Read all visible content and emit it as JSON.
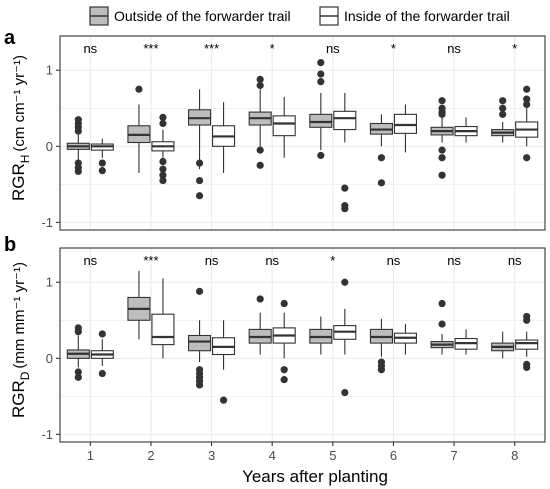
{
  "legend": {
    "outside_label": "Outside of the forwarder trail",
    "inside_label": "Inside of the forwarder trail"
  },
  "colors": {
    "outside_fill": "#bdbdbd",
    "inside_fill": "#ffffff",
    "stroke": "#333333",
    "grid": "#ebebeb",
    "panel_border": "#333333"
  },
  "chart_data": [
    {
      "type": "boxplot",
      "panel": "a",
      "ylabel_main": "RGR",
      "ylabel_sub": "H",
      "ylabel_unit": "(cm cm⁻¹ yr⁻¹)",
      "ylim": [
        -1.1,
        1.45
      ],
      "yticks": [
        -1,
        0,
        1
      ],
      "categories": [
        "1",
        "2",
        "3",
        "4",
        "5",
        "6",
        "7",
        "8"
      ],
      "significance": [
        "ns",
        "***",
        "***",
        "*",
        "ns",
        "*",
        "ns",
        "*"
      ],
      "series": [
        {
          "name": "Outside of the forwarder trail",
          "boxes": [
            {
              "min": -0.18,
              "q1": -0.04,
              "median": 0.0,
              "q3": 0.04,
              "max": 0.17,
              "outliers": [
                0.35,
                0.3,
                0.25,
                0.2,
                -0.22,
                -0.28,
                -0.33
              ]
            },
            {
              "min": -0.35,
              "q1": 0.05,
              "median": 0.15,
              "q3": 0.27,
              "max": 0.55,
              "outliers": [
                0.75
              ]
            },
            {
              "min": -0.3,
              "q1": 0.28,
              "median": 0.37,
              "q3": 0.48,
              "max": 0.75,
              "outliers": [
                -0.22,
                -0.45,
                -0.65
              ]
            },
            {
              "min": 0.0,
              "q1": 0.28,
              "median": 0.37,
              "q3": 0.45,
              "max": 0.75,
              "outliers": [
                0.88,
                0.8,
                -0.05,
                -0.25
              ]
            },
            {
              "min": -0.05,
              "q1": 0.25,
              "median": 0.32,
              "q3": 0.42,
              "max": 0.7,
              "outliers": [
                1.1,
                0.95,
                0.85,
                -0.12
              ]
            },
            {
              "min": 0.0,
              "q1": 0.16,
              "median": 0.22,
              "q3": 0.3,
              "max": 0.42,
              "outliers": [
                -0.15,
                -0.48
              ]
            },
            {
              "min": 0.05,
              "q1": 0.15,
              "median": 0.2,
              "q3": 0.25,
              "max": 0.38,
              "outliers": [
                0.6,
                0.5,
                0.45,
                0.42,
                -0.05,
                -0.15,
                -0.38
              ]
            },
            {
              "min": 0.05,
              "q1": 0.14,
              "median": 0.18,
              "q3": 0.22,
              "max": 0.32,
              "outliers": [
                0.6,
                0.5,
                0.42
              ]
            }
          ]
        },
        {
          "name": "Inside of the forwarder trail",
          "boxes": [
            {
              "min": -0.15,
              "q1": -0.05,
              "median": 0.0,
              "q3": 0.03,
              "max": 0.1,
              "outliers": [
                -0.22,
                -0.32
              ]
            },
            {
              "min": -0.15,
              "q1": -0.06,
              "median": 0.0,
              "q3": 0.06,
              "max": 0.22,
              "outliers": [
                0.38,
                0.3,
                -0.2,
                -0.3,
                -0.38,
                -0.45
              ]
            },
            {
              "min": -0.35,
              "q1": 0.0,
              "median": 0.13,
              "q3": 0.27,
              "max": 0.58,
              "outliers": []
            },
            {
              "min": -0.15,
              "q1": 0.14,
              "median": 0.3,
              "q3": 0.4,
              "max": 0.65,
              "outliers": []
            },
            {
              "min": 0.05,
              "q1": 0.22,
              "median": 0.37,
              "q3": 0.46,
              "max": 0.7,
              "outliers": [
                -0.55,
                -0.78,
                -0.82
              ]
            },
            {
              "min": -0.08,
              "q1": 0.17,
              "median": 0.28,
              "q3": 0.42,
              "max": 0.55,
              "outliers": []
            },
            {
              "min": 0.05,
              "q1": 0.14,
              "median": 0.2,
              "q3": 0.26,
              "max": 0.38,
              "outliers": []
            },
            {
              "min": 0.0,
              "q1": 0.12,
              "median": 0.22,
              "q3": 0.32,
              "max": 0.5,
              "outliers": [
                0.75,
                0.62,
                0.55,
                -0.15
              ]
            }
          ]
        }
      ]
    },
    {
      "type": "boxplot",
      "panel": "b",
      "ylabel_main": "RGR",
      "ylabel_sub": "D",
      "ylabel_unit": "(mm mm⁻¹ yr⁻¹)",
      "ylim": [
        -1.1,
        1.45
      ],
      "yticks": [
        -1,
        0,
        1
      ],
      "categories": [
        "1",
        "2",
        "3",
        "4",
        "5",
        "6",
        "7",
        "8"
      ],
      "significance": [
        "ns",
        "***",
        "ns",
        "ns",
        "*",
        "ns",
        "ns",
        "ns"
      ],
      "xlabel": "Years after planting",
      "series": [
        {
          "name": "Outside of the forwarder trail",
          "boxes": [
            {
              "min": -0.12,
              "q1": 0.0,
              "median": 0.06,
              "q3": 0.11,
              "max": 0.3,
              "outliers": [
                0.4,
                0.35,
                -0.18,
                -0.25
              ]
            },
            {
              "min": 0.25,
              "q1": 0.5,
              "median": 0.65,
              "q3": 0.8,
              "max": 1.15,
              "outliers": []
            },
            {
              "min": -0.05,
              "q1": 0.1,
              "median": 0.22,
              "q3": 0.3,
              "max": 0.5,
              "outliers": [
                0.88,
                -0.15,
                -0.2,
                -0.25,
                -0.3,
                -0.35
              ]
            },
            {
              "min": 0.05,
              "q1": 0.2,
              "median": 0.28,
              "q3": 0.38,
              "max": 0.6,
              "outliers": [
                0.78
              ]
            },
            {
              "min": 0.05,
              "q1": 0.2,
              "median": 0.28,
              "q3": 0.38,
              "max": 0.55,
              "outliers": []
            },
            {
              "min": 0.02,
              "q1": 0.2,
              "median": 0.28,
              "q3": 0.38,
              "max": 0.52,
              "outliers": [
                -0.05,
                -0.1,
                -0.15
              ]
            },
            {
              "min": 0.05,
              "q1": 0.14,
              "median": 0.18,
              "q3": 0.22,
              "max": 0.32,
              "outliers": [
                0.72,
                0.45
              ]
            },
            {
              "min": 0.0,
              "q1": 0.1,
              "median": 0.15,
              "q3": 0.2,
              "max": 0.35,
              "outliers": []
            }
          ]
        },
        {
          "name": "Inside of the forwarder trail",
          "boxes": [
            {
              "min": -0.1,
              "q1": 0.0,
              "median": 0.05,
              "q3": 0.1,
              "max": 0.25,
              "outliers": [
                0.32,
                -0.2
              ]
            },
            {
              "min": 0.0,
              "q1": 0.18,
              "median": 0.28,
              "q3": 0.58,
              "max": 1.05,
              "outliers": []
            },
            {
              "min": -0.15,
              "q1": 0.05,
              "median": 0.15,
              "q3": 0.27,
              "max": 0.5,
              "outliers": [
                -0.55
              ]
            },
            {
              "min": 0.0,
              "q1": 0.2,
              "median": 0.3,
              "q3": 0.4,
              "max": 0.6,
              "outliers": [
                0.72,
                -0.15,
                -0.28
              ]
            },
            {
              "min": 0.05,
              "q1": 0.25,
              "median": 0.35,
              "q3": 0.43,
              "max": 0.65,
              "outliers": [
                1.0,
                -0.45
              ]
            },
            {
              "min": 0.05,
              "q1": 0.2,
              "median": 0.27,
              "q3": 0.33,
              "max": 0.45,
              "outliers": []
            },
            {
              "min": 0.05,
              "q1": 0.12,
              "median": 0.2,
              "q3": 0.26,
              "max": 0.38,
              "outliers": []
            },
            {
              "min": 0.02,
              "q1": 0.12,
              "median": 0.2,
              "q3": 0.24,
              "max": 0.35,
              "outliers": [
                0.55,
                0.5,
                -0.08,
                -0.12
              ]
            }
          ]
        }
      ]
    }
  ]
}
